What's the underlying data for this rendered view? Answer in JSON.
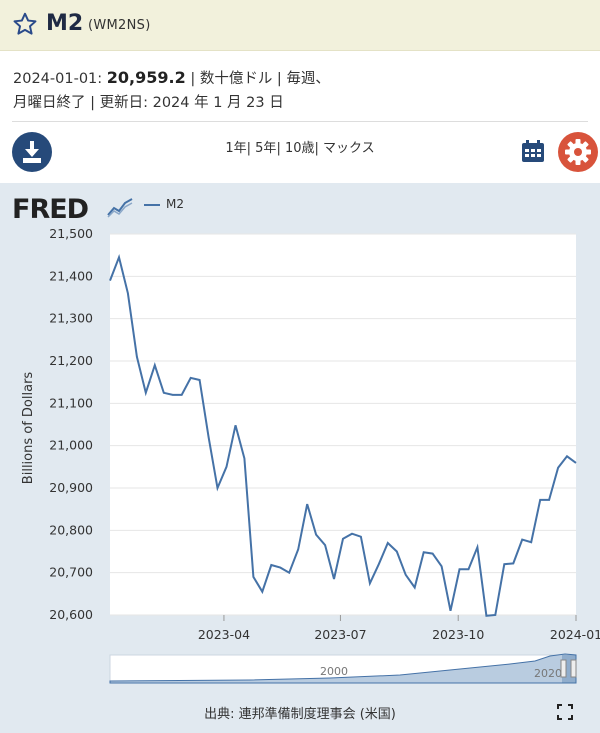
{
  "header": {
    "title": "M2",
    "series_id": "(WM2NS)"
  },
  "meta": {
    "date": "2024-01-01:",
    "value": "20,959.2",
    "line1_rest": "| 数十億ドル | 毎週、",
    "line2": "月曜日終了 | 更新日: 2024 年 1 月 23 日"
  },
  "toolbar": {
    "ranges": [
      {
        "label": "1年"
      },
      {
        "label": "5年"
      },
      {
        "label": "10歳"
      },
      {
        "label": "マックス"
      }
    ],
    "icons": [
      "download-icon",
      "calendar-icon",
      "gear-icon"
    ]
  },
  "chart": {
    "logo_text": "FRED",
    "legend_label": "M2",
    "source": "出典: 連邦準備制度理事会 (米国)",
    "navigator_labels": [
      "2000",
      "2020"
    ],
    "series_color": "#4572a7",
    "header_bg": "#f2f1dc",
    "download_color": "#264a7a",
    "gear_color": "#d8533b"
  },
  "chart_data": {
    "type": "line",
    "ylabel": "Billions of Dollars",
    "ylim": [
      20600,
      21500
    ],
    "yticks": [
      "21,500",
      "21,400",
      "21,300",
      "21,200",
      "21,100",
      "21,000",
      "20,900",
      "20,800",
      "20,700",
      "20,600"
    ],
    "xticks": [
      "2023-04",
      "2023-07",
      "2023-10",
      "2024-01"
    ],
    "grid": true,
    "series": [
      {
        "name": "M2",
        "x": [
          "2023-01-02",
          "2023-01-09",
          "2023-01-16",
          "2023-01-23",
          "2023-01-30",
          "2023-02-06",
          "2023-02-13",
          "2023-02-20",
          "2023-02-27",
          "2023-03-06",
          "2023-03-13",
          "2023-03-20",
          "2023-03-27",
          "2023-04-03",
          "2023-04-10",
          "2023-04-17",
          "2023-04-24",
          "2023-05-01",
          "2023-05-08",
          "2023-05-15",
          "2023-05-22",
          "2023-05-29",
          "2023-06-05",
          "2023-06-12",
          "2023-06-19",
          "2023-06-26",
          "2023-07-03",
          "2023-07-10",
          "2023-07-17",
          "2023-07-24",
          "2023-07-31",
          "2023-08-07",
          "2023-08-14",
          "2023-08-21",
          "2023-08-28",
          "2023-09-04",
          "2023-09-11",
          "2023-09-18",
          "2023-09-25",
          "2023-10-02",
          "2023-10-09",
          "2023-10-16",
          "2023-10-23",
          "2023-10-30",
          "2023-11-06",
          "2023-11-13",
          "2023-11-20",
          "2023-11-27",
          "2023-12-04",
          "2023-12-11",
          "2023-12-18",
          "2023-12-25",
          "2024-01-01"
        ],
        "values": [
          21390,
          21445,
          21360,
          21210,
          21125,
          21190,
          21125,
          21120,
          21120,
          21160,
          21155,
          21020,
          20900,
          20950,
          21048,
          20970,
          20690,
          20655,
          20718,
          20712,
          20700,
          20755,
          20862,
          20790,
          20765,
          20685,
          20780,
          20792,
          20785,
          20675,
          20720,
          20770,
          20750,
          20695,
          20665,
          20748,
          20745,
          20715,
          20610,
          20708,
          20708,
          20760,
          20598,
          20600,
          20720,
          20722,
          20778,
          20772,
          20872,
          20872,
          20948,
          20975,
          20959.2
        ]
      }
    ]
  }
}
